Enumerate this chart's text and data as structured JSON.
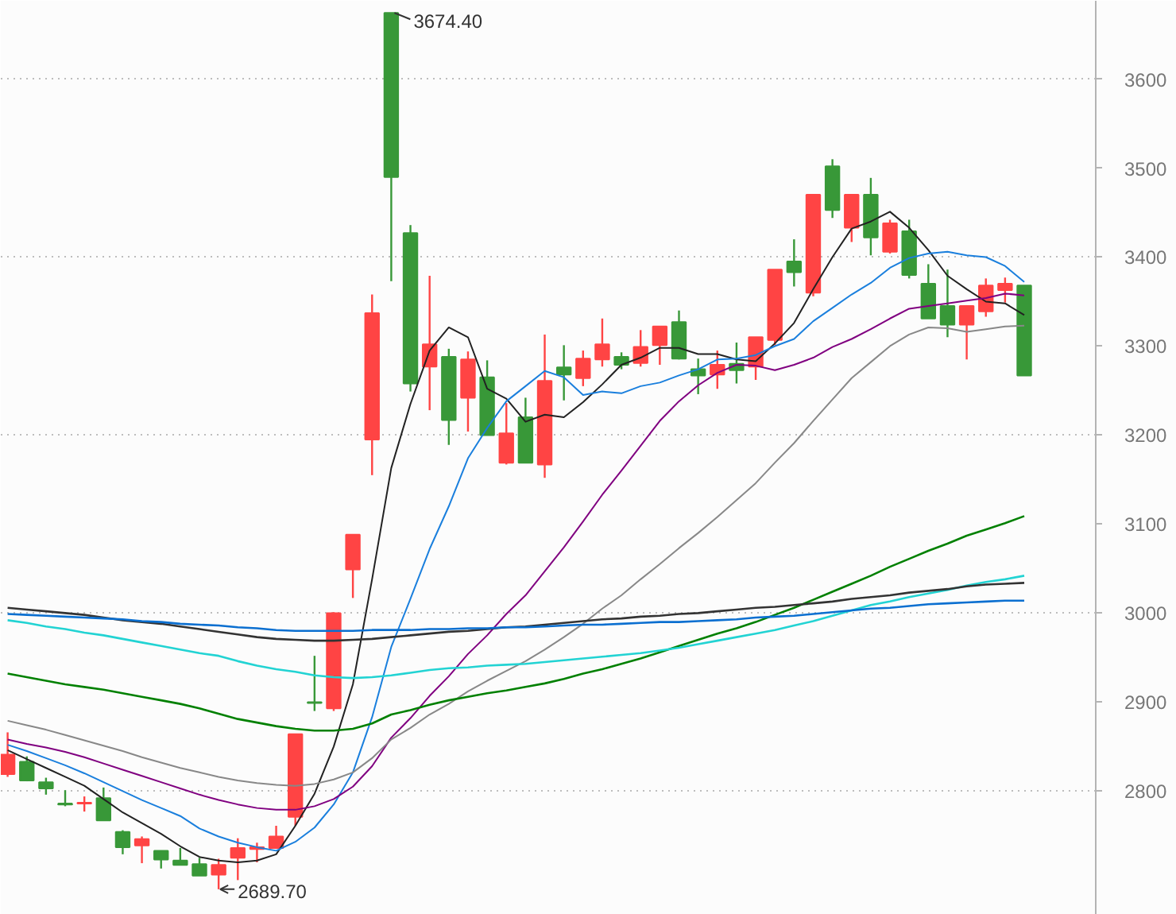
{
  "chart_data": {
    "type": "candlestick",
    "categories": [
      null,
      null,
      null,
      null,
      null,
      null,
      null,
      null,
      null,
      null,
      null,
      null,
      null,
      null,
      null,
      null,
      null,
      null,
      null,
      null,
      null,
      null,
      null,
      null,
      null,
      null,
      null,
      null,
      null,
      null,
      null,
      null,
      null,
      null,
      null,
      null,
      null,
      null,
      null,
      null,
      null,
      null,
      null,
      null,
      null,
      null,
      null,
      null,
      null,
      null,
      null,
      null,
      null,
      null
    ],
    "ohlc": [
      [
        2819,
        2866,
        2816,
        2841
      ],
      [
        2833,
        2839,
        2811,
        2812
      ],
      [
        2810,
        2815,
        2796,
        2803
      ],
      [
        2786,
        2801,
        2783,
        2785
      ],
      [
        2786,
        2794,
        2777,
        2787
      ],
      [
        2792,
        2804,
        2767,
        2767
      ],
      [
        2754,
        2756,
        2729,
        2737
      ],
      [
        2739,
        2749,
        2719,
        2746
      ],
      [
        2733,
        2733,
        2713,
        2723
      ],
      [
        2722,
        2736,
        2717,
        2717
      ],
      [
        2718,
        2725,
        2705,
        2705
      ],
      [
        2706,
        2724,
        2689.7,
        2717
      ],
      [
        2725,
        2747,
        2700,
        2736
      ],
      [
        2735,
        2742,
        2720,
        2737
      ],
      [
        2736,
        2761,
        2736,
        2749
      ],
      [
        2771,
        2864,
        2761,
        2864
      ],
      [
        2900,
        2952,
        2890,
        2899
      ],
      [
        2893,
        3001,
        2890,
        3000
      ],
      [
        3049,
        3088,
        3017,
        3088
      ],
      [
        3195,
        3358,
        3155,
        3337
      ],
      [
        3674.4,
        3674.4,
        3373,
        3490
      ],
      [
        3427,
        3436,
        3249,
        3258
      ],
      [
        3277,
        3379,
        3228,
        3302
      ],
      [
        3288,
        3297,
        3189,
        3217
      ],
      [
        3242,
        3294,
        3204,
        3285
      ],
      [
        3265,
        3284,
        3200,
        3200
      ],
      [
        3169,
        3236,
        3167,
        3202
      ],
      [
        3220,
        3242,
        3169,
        3169
      ],
      [
        3167,
        3313,
        3152,
        3261
      ],
      [
        3276,
        3301,
        3239,
        3268
      ],
      [
        3264,
        3295,
        3255,
        3286
      ],
      [
        3285,
        3331,
        3277,
        3302
      ],
      [
        3288,
        3293,
        3274,
        3279
      ],
      [
        3281,
        3318,
        3277,
        3299
      ],
      [
        3301,
        3322,
        3279,
        3322
      ],
      [
        3327,
        3340,
        3285,
        3286
      ],
      [
        3274,
        3286,
        3246,
        3267
      ],
      [
        3268,
        3295,
        3252,
        3279
      ],
      [
        3280,
        3304,
        3258,
        3273
      ],
      [
        3277,
        3310,
        3262,
        3310
      ],
      [
        3307,
        3386,
        3301,
        3386
      ],
      [
        3395,
        3420,
        3367,
        3383
      ],
      [
        3360,
        3470,
        3356,
        3470
      ],
      [
        3502,
        3510,
        3444,
        3453
      ],
      [
        3433,
        3470,
        3417,
        3470
      ],
      [
        3470,
        3489,
        3402,
        3422
      ],
      [
        3406,
        3442,
        3404,
        3438
      ],
      [
        3429,
        3442,
        3376,
        3380
      ],
      [
        3370,
        3392,
        3331,
        3331
      ],
      [
        3345,
        3386,
        3310,
        3324
      ],
      [
        3324,
        3346,
        3285,
        3345
      ],
      [
        3339,
        3376,
        3333,
        3368
      ],
      [
        3363,
        3377,
        3349,
        3370
      ],
      [
        3368,
        3368,
        3267,
        3267
      ]
    ],
    "colors": [
      "#ff4444",
      "#389838",
      "#389838",
      "#389838",
      "#ff4444",
      "#389838",
      "#389838",
      "#ff4444",
      "#389838",
      "#389838",
      "#389838",
      "#ff4444",
      "#ff4444",
      "#ff4444",
      "#ff4444",
      "#ff4444",
      "#389838",
      "#ff4444",
      "#ff4444",
      "#ff4444",
      "#389838",
      "#389838",
      "#ff4444",
      "#389838",
      "#ff4444",
      "#389838",
      "#ff4444",
      "#389838",
      "#ff4444",
      "#389838",
      "#ff4444",
      "#ff4444",
      "#389838",
      "#ff4444",
      "#ff4444",
      "#389838",
      "#389838",
      "#ff4444",
      "#389838",
      "#ff4444",
      "#ff4444",
      "#389838",
      "#ff4444",
      "#389838",
      "#ff4444",
      "#389838",
      "#ff4444",
      "#389838",
      "#389838",
      "#389838",
      "#ff4444",
      "#ff4444",
      "#ff4444",
      "#389838"
    ],
    "series": [
      {
        "type": "line",
        "color": "#222222",
        "values": [
          2846,
          2836,
          2826,
          2816,
          2806,
          2791,
          2776,
          2764,
          2752,
          2738,
          2726,
          2722,
          2720,
          2722,
          2729,
          2761,
          2797,
          2850,
          2920,
          3038,
          3163,
          3235,
          3295,
          3321,
          3310,
          3252,
          3241,
          3215,
          3223,
          3220,
          3237,
          3257,
          3279,
          3287,
          3298,
          3298,
          3291,
          3291,
          3285,
          3283,
          3303,
          3326,
          3364,
          3400,
          3432,
          3440,
          3451,
          3433,
          3408,
          3379,
          3364,
          3350,
          3348,
          3335
        ]
      },
      {
        "type": "line",
        "color": "#1a7fdd",
        "values": [
          2852,
          2845,
          2837,
          2829,
          2820,
          2810,
          2800,
          2790,
          2781,
          2772,
          2758,
          2749,
          2742,
          2737,
          2733,
          2743,
          2759,
          2785,
          2821,
          2883,
          2962,
          3016,
          3072,
          3120,
          3174,
          3208,
          3238,
          3255,
          3272,
          3265,
          3245,
          3249,
          3247,
          3255,
          3259,
          3267,
          3274,
          3285,
          3286,
          3290,
          3300,
          3308,
          3328,
          3343,
          3358,
          3371,
          3388,
          3399,
          3404,
          3406,
          3402,
          3400,
          3390,
          3372
        ]
      },
      {
        "type": "line",
        "color": "#800080",
        "values": [
          2858,
          2853,
          2849,
          2844,
          2838,
          2831,
          2824,
          2817,
          2810,
          2803,
          2796,
          2790,
          2785,
          2781,
          2779,
          2779,
          2783,
          2791,
          2805,
          2828,
          2860,
          2882,
          2907,
          2929,
          2954,
          2975,
          2999,
          3020,
          3047,
          3074,
          3103,
          3133,
          3160,
          3188,
          3216,
          3238,
          3256,
          3270,
          3279,
          3278,
          3273,
          3279,
          3287,
          3299,
          3308,
          3319,
          3331,
          3342,
          3345,
          3348,
          3351,
          3354,
          3359,
          3357
        ]
      },
      {
        "type": "line",
        "color": "#888888",
        "values": [
          2879,
          2874,
          2869,
          2863,
          2857,
          2851,
          2845,
          2838,
          2832,
          2826,
          2821,
          2816,
          2812,
          2809,
          2807,
          2806,
          2808,
          2813,
          2821,
          2837,
          2858,
          2871,
          2886,
          2898,
          2912,
          2924,
          2935,
          2946,
          2959,
          2973,
          2988,
          3005,
          3020,
          3038,
          3055,
          3073,
          3090,
          3108,
          3127,
          3146,
          3169,
          3191,
          3216,
          3240,
          3264,
          3282,
          3300,
          3313,
          3321,
          3320,
          3316,
          3319,
          3322,
          3323
        ]
      },
      {
        "type": "line",
        "color": "#008000",
        "values": [
          2932,
          2928,
          2924,
          2920,
          2917,
          2914,
          2910,
          2906,
          2902,
          2898,
          2893,
          2887,
          2881,
          2877,
          2873,
          2870,
          2868,
          2868,
          2870,
          2876,
          2886,
          2891,
          2897,
          2902,
          2906,
          2910,
          2913,
          2917,
          2921,
          2926,
          2932,
          2937,
          2943,
          2949,
          2956,
          2963,
          2970,
          2977,
          2983,
          2990,
          2998,
          3006,
          3015,
          3024,
          3033,
          3042,
          3052,
          3061,
          3070,
          3078,
          3087,
          3094,
          3101,
          3109
        ]
      },
      {
        "type": "line",
        "color": "#22d3d3",
        "values": [
          2992,
          2989,
          2985,
          2982,
          2978,
          2975,
          2971,
          2967,
          2963,
          2959,
          2955,
          2952,
          2946,
          2941,
          2937,
          2934,
          2930,
          2928,
          2927,
          2928,
          2930,
          2933,
          2936,
          2938,
          2939,
          2941,
          2942,
          2943,
          2945,
          2947,
          2949,
          2951,
          2953,
          2955,
          2958,
          2961,
          2965,
          2969,
          2973,
          2977,
          2981,
          2986,
          2991,
          2997,
          3003,
          3009,
          3013,
          3018,
          3022,
          3026,
          3031,
          3035,
          3038,
          3042
        ]
      },
      {
        "type": "line",
        "color": "#333333",
        "values": [
          3006,
          3004,
          3002,
          3000,
          2998,
          2995,
          2992,
          2990,
          2988,
          2985,
          2982,
          2979,
          2976,
          2973,
          2971,
          2970,
          2969,
          2969,
          2970,
          2971,
          2973,
          2975,
          2977,
          2979,
          2980,
          2982,
          2984,
          2985,
          2987,
          2989,
          2991,
          2993,
          2994,
          2996,
          2997,
          2999,
          3000,
          3002,
          3004,
          3006,
          3007,
          3009,
          3011,
          3013,
          3016,
          3018,
          3020,
          3023,
          3025,
          3027,
          3030,
          3032,
          3033,
          3034
        ]
      },
      {
        "type": "line",
        "color": "#0b6fd0",
        "values": [
          2999,
          2998,
          2997,
          2996,
          2995,
          2994,
          2993,
          2991,
          2990,
          2988,
          2987,
          2986,
          2984,
          2983,
          2981,
          2980,
          2980,
          2980,
          2980,
          2981,
          2981,
          2981,
          2982,
          2982,
          2983,
          2983,
          2984,
          2984,
          2985,
          2986,
          2987,
          2987,
          2988,
          2989,
          2990,
          2990,
          2991,
          2992,
          2993,
          2995,
          2996,
          2997,
          2999,
          3001,
          3003,
          3005,
          3006,
          3008,
          3010,
          3011,
          3012,
          3013,
          3014,
          3014
        ]
      }
    ],
    "ylim": [
      2661,
      3688
    ],
    "yticks": [
      2800,
      2900,
      3000,
      3100,
      3200,
      3300,
      3400,
      3500,
      3600
    ],
    "grid": "y",
    "tick_labels": "y",
    "annotations": [
      "3674.40",
      "2689.70"
    ]
  }
}
